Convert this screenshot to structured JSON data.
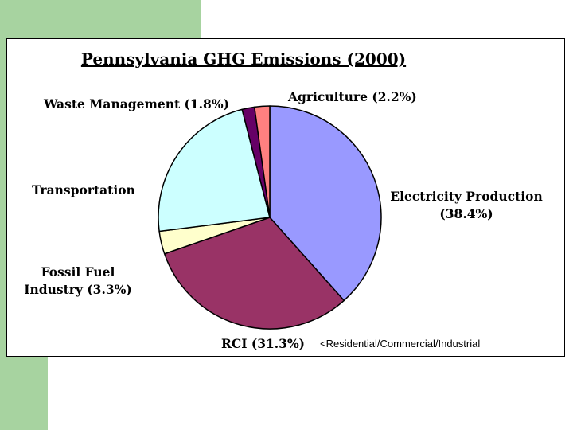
{
  "chart_data": {
    "type": "pie",
    "title": "Pennsylvania GHG Emissions (2000)",
    "slices": [
      {
        "name": "Electricity Production",
        "label_lines": [
          "Electricity Production",
          "(38.4%)"
        ],
        "value": 38.4,
        "color": "#9999ff"
      },
      {
        "name": "RCI",
        "label_lines": [
          "RCI (31.3%)"
        ],
        "value": 31.3,
        "color": "#993366"
      },
      {
        "name": "Fossil Fuel Industry",
        "label_lines": [
          "Fossil Fuel",
          "Industry (3.3%)"
        ],
        "value": 3.3,
        "color": "#ffffcc"
      },
      {
        "name": "Transportation",
        "label_lines": [
          "Transportation"
        ],
        "value": 23.0,
        "color": "#ccffff"
      },
      {
        "name": "Waste Management",
        "label_lines": [
          "Waste Management (1.8%)"
        ],
        "value": 1.8,
        "color": "#660066"
      },
      {
        "name": "Agriculture",
        "label_lines": [
          "Agriculture (2.2%)"
        ],
        "value": 2.2,
        "color": "#ff8080"
      }
    ],
    "annotation": "<Residential/Commercial/Industrial"
  }
}
